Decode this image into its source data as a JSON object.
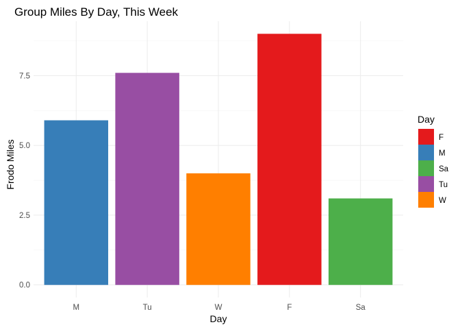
{
  "chart_data": {
    "type": "bar",
    "title": "Group Miles By Day, This Week",
    "xlabel": "Day",
    "ylabel": "Frodo Miles",
    "categories": [
      "M",
      "Tu",
      "W",
      "F",
      "Sa"
    ],
    "values": [
      5.9,
      7.6,
      4.0,
      9.0,
      3.1
    ],
    "colors": [
      "#377EB8",
      "#984EA3",
      "#FF7F00",
      "#E41A1C",
      "#4DAF4A"
    ],
    "ylim": [
      -0.45,
      9.45
    ],
    "yticks": [
      0.0,
      2.5,
      5.0,
      7.5
    ],
    "ytick_labels": [
      "0.0",
      "2.5",
      "5.0",
      "7.5"
    ],
    "grid": true,
    "legend": {
      "title": "Day",
      "placement": "right",
      "entries": [
        {
          "label": "F",
          "color": "#E41A1C"
        },
        {
          "label": "M",
          "color": "#377EB8"
        },
        {
          "label": "Sa",
          "color": "#4DAF4A"
        },
        {
          "label": "Tu",
          "color": "#984EA3"
        },
        {
          "label": "W",
          "color": "#FF7F00"
        }
      ]
    }
  }
}
